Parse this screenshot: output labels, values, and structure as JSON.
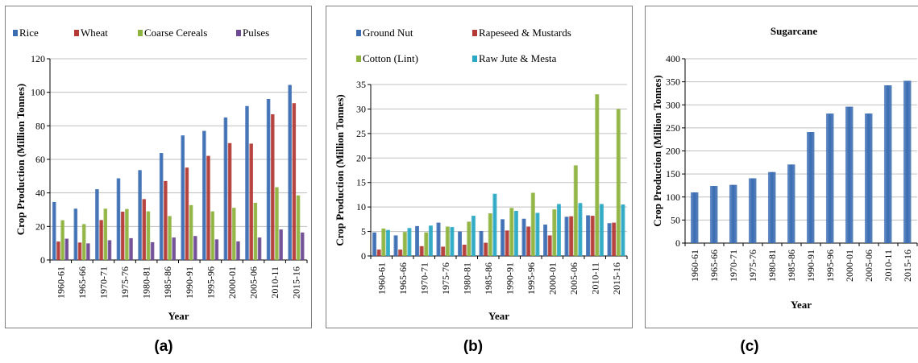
{
  "colors": {
    "blue": "#3b6db3",
    "red": "#b33a35",
    "green": "#8eb33e",
    "purple": "#6c4a93",
    "teal": "#2aa8c4",
    "grid": "#bfbfbf",
    "frame": "#7f7f7f"
  },
  "captions": [
    "(a)",
    "(b)",
    "(c)"
  ],
  "chart_data": [
    {
      "type": "bar",
      "title": "",
      "xlabel": "Year",
      "ylabel": "Crop Production (Million Tonnes)",
      "ylim": [
        0,
        120
      ],
      "yticks": [
        0,
        20,
        40,
        60,
        80,
        100,
        120
      ],
      "legend": "top",
      "grid": true,
      "categories": [
        "1960-61",
        "1965-66",
        "1970-71",
        "1975-76",
        "1980-81",
        "1985-86",
        "1990-91",
        "1995-96",
        "2000-01",
        "2005-06",
        "2010-11",
        "2015-16"
      ],
      "series": [
        {
          "name": "Rice",
          "color": "#3b6db3",
          "values": [
            34.6,
            30.6,
            42.2,
            48.7,
            53.6,
            63.8,
            74.3,
            77.0,
            85.0,
            91.8,
            96.0,
            104.4
          ]
        },
        {
          "name": "Wheat",
          "color": "#b33a35",
          "values": [
            11.0,
            10.4,
            23.8,
            28.8,
            36.3,
            47.1,
            55.1,
            62.1,
            69.7,
            69.4,
            86.9,
            93.5
          ]
        },
        {
          "name": "Coarse Cereals",
          "color": "#8eb33e",
          "values": [
            23.7,
            21.4,
            30.6,
            30.4,
            29.0,
            26.2,
            32.7,
            29.0,
            31.1,
            34.1,
            43.4,
            38.5
          ]
        },
        {
          "name": "Pulses",
          "color": "#6c4a93",
          "values": [
            12.7,
            9.9,
            11.8,
            13.0,
            10.6,
            13.4,
            14.3,
            12.3,
            11.1,
            13.4,
            18.2,
            16.4
          ]
        }
      ]
    },
    {
      "type": "bar",
      "title": "",
      "xlabel": "Year",
      "ylabel": "Crop Production (Million Tonnes)",
      "ylim": [
        0,
        35
      ],
      "yticks": [
        0,
        5,
        10,
        15,
        20,
        25,
        30,
        35
      ],
      "legend": "top",
      "grid": true,
      "categories": [
        "1960-61",
        "1965-66",
        "1970-71",
        "1975-76",
        "1980-81",
        "1985-86",
        "1990-91",
        "1995-96",
        "2000-01",
        "2005-06",
        "2010-11",
        "2015-16"
      ],
      "series": [
        {
          "name": "Ground Nut",
          "color": "#3b6db3",
          "values": [
            4.8,
            4.2,
            6.1,
            6.8,
            5.0,
            5.1,
            7.5,
            7.6,
            6.4,
            8.0,
            8.3,
            6.7
          ]
        },
        {
          "name": "Rapeseed & Mustards",
          "color": "#b33a35",
          "values": [
            1.3,
            1.3,
            2.0,
            1.9,
            2.3,
            2.7,
            5.2,
            6.0,
            4.2,
            8.1,
            8.2,
            6.8
          ]
        },
        {
          "name": "Cotton (Lint)",
          "color": "#8eb33e",
          "values": [
            5.6,
            4.9,
            4.8,
            6.0,
            7.0,
            8.7,
            9.8,
            12.9,
            9.5,
            18.5,
            33.0,
            30.0
          ]
        },
        {
          "name": "Raw Jute & Mesta",
          "color": "#2aa8c4",
          "values": [
            5.3,
            5.7,
            6.2,
            5.9,
            8.2,
            12.7,
            9.2,
            8.8,
            10.6,
            10.8,
            10.6,
            10.5
          ]
        }
      ]
    },
    {
      "type": "bar",
      "title": "Sugarcane",
      "xlabel": "Year",
      "ylabel": "Crop Production (Million Tonnes)",
      "ylim": [
        0,
        400
      ],
      "yticks": [
        0,
        50,
        100,
        150,
        200,
        250,
        300,
        350,
        400
      ],
      "legend": "none",
      "grid": true,
      "categories": [
        "1960-61",
        "1965-66",
        "1970-71",
        "1975-76",
        "1980-81",
        "1985-86",
        "1990-91",
        "1995-96",
        "2000-01",
        "2005-06",
        "2010-11",
        "2015-16"
      ],
      "series": [
        {
          "name": "",
          "color": "#3b6db3",
          "values": [
            110.0,
            124.0,
            126.4,
            140.6,
            154.2,
            170.6,
            241.0,
            281.1,
            296.0,
            281.2,
            342.4,
            352.2
          ]
        }
      ]
    }
  ]
}
